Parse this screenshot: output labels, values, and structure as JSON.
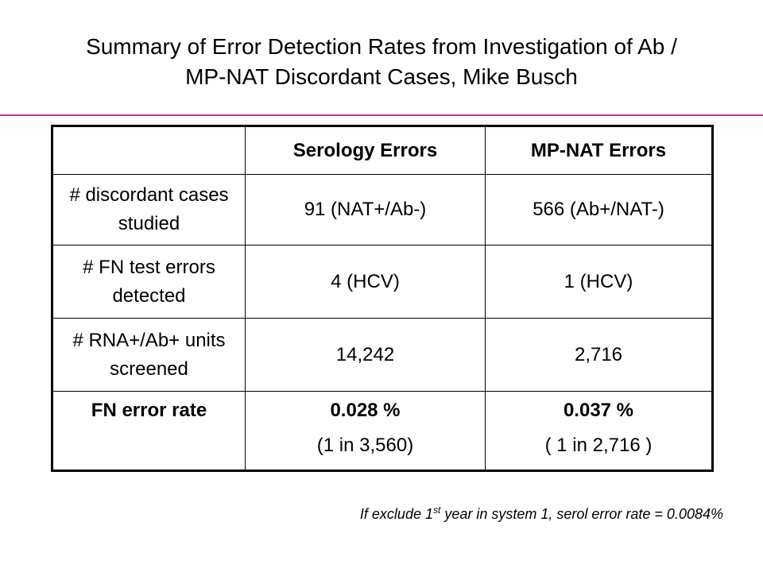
{
  "title": {
    "line1": "Summary of Error Detection Rates from Investigation of Ab /",
    "line2": "MP-NAT Discordant Cases, Mike Busch"
  },
  "accent_color": "#cc3399",
  "table": {
    "headers": [
      "",
      "Serology Errors",
      "MP-NAT Errors"
    ],
    "rows": [
      [
        "# discordant cases studied",
        "91 (NAT+/Ab-)",
        "566 (Ab+/NAT-)"
      ],
      [
        "# FN test errors detected",
        "4 (HCV)",
        "1 (HCV)"
      ],
      [
        "# RNA+/Ab+ units screened",
        "14,242",
        "2,716"
      ]
    ],
    "rate_row": {
      "label": "FN error rate",
      "serology_pct": "0.028 %",
      "serology_ratio": "(1 in 3,560)",
      "nat_pct": "0.037 %",
      "nat_ratio": "( 1 in 2,716 )"
    }
  },
  "footnote": {
    "prefix": "If exclude 1",
    "superscript": "st",
    "suffix": " year in system 1, serol error rate = 0.0084%"
  }
}
